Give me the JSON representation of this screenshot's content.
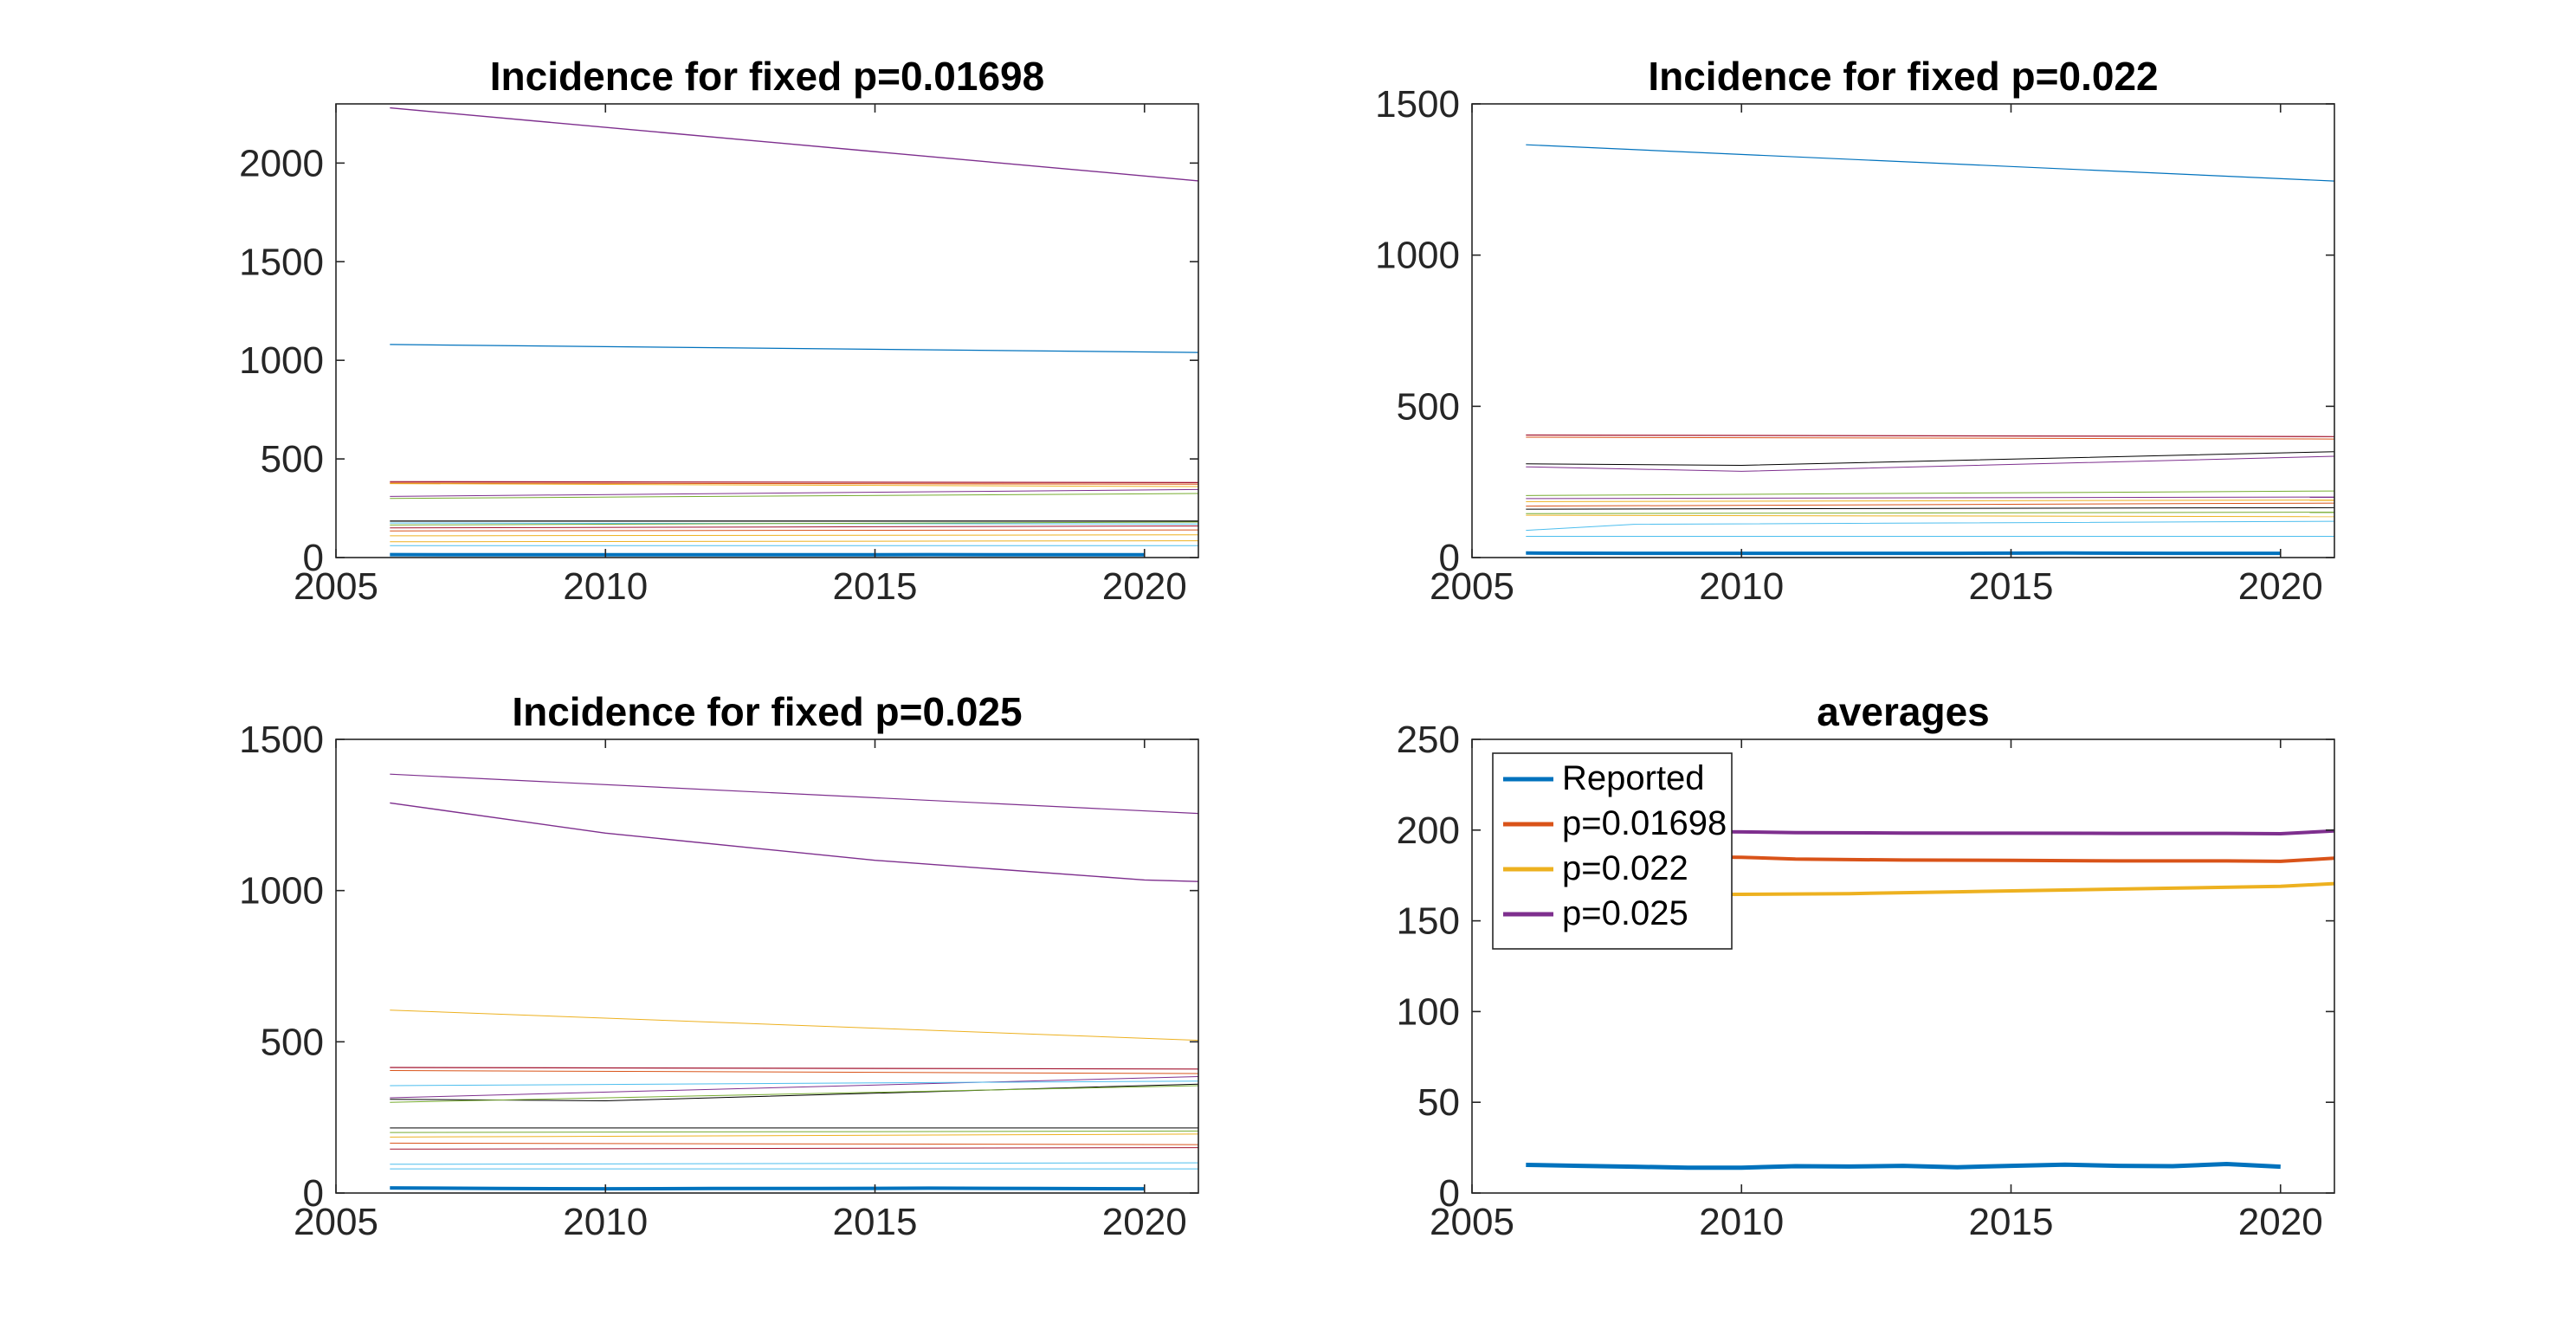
{
  "chart_data": [
    {
      "type": "line",
      "title": "Incidence for fixed p=0.01698",
      "xlim": [
        2005,
        2021
      ],
      "ylim": [
        0,
        2300
      ],
      "xticks": [
        2005,
        2010,
        2015,
        2020
      ],
      "yticks": [
        0,
        500,
        1000,
        1500,
        2000
      ],
      "series": [
        {
          "color": "#7E2F8E",
          "width": 1.4,
          "x": [
            2006,
            2021
          ],
          "y": [
            2280,
            1910
          ]
        },
        {
          "color": "#0072BD",
          "width": 1.2,
          "x": [
            2006,
            2021
          ],
          "y": [
            1080,
            1040
          ]
        },
        {
          "color": "#A2142F",
          "width": 1.2,
          "x": [
            2006,
            2021
          ],
          "y": [
            385,
            380
          ]
        },
        {
          "color": "#D95319",
          "width": 1.2,
          "x": [
            2006,
            2021
          ],
          "y": [
            378,
            372
          ]
        },
        {
          "color": "#EDB120",
          "width": 1.0,
          "x": [
            2006,
            2021
          ],
          "y": [
            375,
            360
          ]
        },
        {
          "color": "#7E2F8E",
          "width": 1.0,
          "x": [
            2006,
            2021
          ],
          "y": [
            310,
            345
          ]
        },
        {
          "color": "#77AC30",
          "width": 1.0,
          "x": [
            2006,
            2021
          ],
          "y": [
            300,
            325
          ]
        },
        {
          "color": "#000000",
          "width": 1.2,
          "x": [
            2006,
            2021
          ],
          "y": [
            185,
            185
          ]
        },
        {
          "color": "#4DBEEE",
          "width": 1.0,
          "x": [
            2006,
            2021
          ],
          "y": [
            175,
            170
          ]
        },
        {
          "color": "#77AC30",
          "width": 1.0,
          "x": [
            2006,
            2021
          ],
          "y": [
            165,
            180
          ]
        },
        {
          "color": "#A2142F",
          "width": 1.0,
          "x": [
            2006,
            2021
          ],
          "y": [
            150,
            160
          ]
        },
        {
          "color": "#D95319",
          "width": 1.0,
          "x": [
            2006,
            2021
          ],
          "y": [
            135,
            140
          ]
        },
        {
          "color": "#EDB120",
          "width": 1.0,
          "x": [
            2006,
            2021
          ],
          "y": [
            110,
            115
          ]
        },
        {
          "color": "#EDB120",
          "width": 1.0,
          "x": [
            2006,
            2021
          ],
          "y": [
            80,
            85
          ]
        },
        {
          "color": "#4DBEEE",
          "width": 1.0,
          "x": [
            2006,
            2021
          ],
          "y": [
            60,
            60
          ]
        },
        {
          "color": "#0072BD",
          "width": 4.0,
          "x": [
            2006,
            2008,
            2010,
            2012,
            2014,
            2016,
            2018,
            2020
          ],
          "y": [
            15,
            14,
            14,
            14,
            14,
            15,
            14,
            14
          ]
        }
      ]
    },
    {
      "type": "line",
      "title": "Incidence for fixed p=0.022",
      "xlim": [
        2005,
        2021
      ],
      "ylim": [
        0,
        1500
      ],
      "xticks": [
        2005,
        2010,
        2015,
        2020
      ],
      "yticks": [
        0,
        500,
        1000,
        1500
      ],
      "series": [
        {
          "color": "#0072BD",
          "width": 1.2,
          "x": [
            2006,
            2021
          ],
          "y": [
            1365,
            1245
          ]
        },
        {
          "color": "#A2142F",
          "width": 1.2,
          "x": [
            2006,
            2021
          ],
          "y": [
            405,
            400
          ]
        },
        {
          "color": "#D95319",
          "width": 1.0,
          "x": [
            2006,
            2021
          ],
          "y": [
            398,
            392
          ]
        },
        {
          "color": "#000000",
          "width": 1.0,
          "x": [
            2006,
            2010,
            2021
          ],
          "y": [
            310,
            305,
            350
          ]
        },
        {
          "color": "#7E2F8E",
          "width": 1.0,
          "x": [
            2006,
            2010,
            2021
          ],
          "y": [
            300,
            285,
            335
          ]
        },
        {
          "color": "#77AC30",
          "width": 1.0,
          "x": [
            2006,
            2021
          ],
          "y": [
            205,
            220
          ]
        },
        {
          "color": "#7E2F8E",
          "width": 1.0,
          "x": [
            2006,
            2021
          ],
          "y": [
            195,
            200
          ]
        },
        {
          "color": "#EDB120",
          "width": 1.0,
          "x": [
            2006,
            2021
          ],
          "y": [
            185,
            190
          ]
        },
        {
          "color": "#D95319",
          "width": 1.0,
          "x": [
            2006,
            2021
          ],
          "y": [
            170,
            180
          ]
        },
        {
          "color": "#000000",
          "width": 1.0,
          "x": [
            2006,
            2021
          ],
          "y": [
            160,
            165
          ]
        },
        {
          "color": "#77AC30",
          "width": 1.0,
          "x": [
            2006,
            2021
          ],
          "y": [
            145,
            150
          ]
        },
        {
          "color": "#EDB120",
          "width": 1.0,
          "x": [
            2006,
            2021
          ],
          "y": [
            140,
            135
          ]
        },
        {
          "color": "#4DBEEE",
          "width": 1.0,
          "x": [
            2006,
            2008,
            2021
          ],
          "y": [
            90,
            110,
            120
          ]
        },
        {
          "color": "#4DBEEE",
          "width": 1.0,
          "x": [
            2006,
            2021
          ],
          "y": [
            70,
            70
          ]
        },
        {
          "color": "#0072BD",
          "width": 4.0,
          "x": [
            2006,
            2008,
            2010,
            2012,
            2014,
            2016,
            2018,
            2020
          ],
          "y": [
            15,
            14,
            14,
            14,
            14,
            15,
            14,
            14
          ]
        }
      ]
    },
    {
      "type": "line",
      "title": "Incidence for fixed p=0.025",
      "xlim": [
        2005,
        2021
      ],
      "ylim": [
        0,
        1500
      ],
      "xticks": [
        2005,
        2010,
        2015,
        2020
      ],
      "yticks": [
        0,
        500,
        1000,
        1500
      ],
      "series": [
        {
          "color": "#7E2F8E",
          "width": 1.2,
          "x": [
            2006,
            2021
          ],
          "y": [
            1385,
            1255
          ]
        },
        {
          "color": "#7E2F8E",
          "width": 1.4,
          "x": [
            2006,
            2010,
            2015,
            2020,
            2021
          ],
          "y": [
            1290,
            1190,
            1100,
            1035,
            1030
          ]
        },
        {
          "color": "#EDB120",
          "width": 1.0,
          "x": [
            2006,
            2021
          ],
          "y": [
            605,
            505
          ]
        },
        {
          "color": "#A2142F",
          "width": 1.2,
          "x": [
            2006,
            2021
          ],
          "y": [
            415,
            410
          ]
        },
        {
          "color": "#D95319",
          "width": 1.0,
          "x": [
            2006,
            2021
          ],
          "y": [
            405,
            395
          ]
        },
        {
          "color": "#7E2F8E",
          "width": 1.0,
          "x": [
            2006,
            2021
          ],
          "y": [
            315,
            385
          ]
        },
        {
          "color": "#4DBEEE",
          "width": 1.0,
          "x": [
            2006,
            2021
          ],
          "y": [
            355,
            370
          ]
        },
        {
          "color": "#000000",
          "width": 1.0,
          "x": [
            2006,
            2010,
            2021
          ],
          "y": [
            310,
            305,
            360
          ]
        },
        {
          "color": "#77AC30",
          "width": 1.0,
          "x": [
            2006,
            2021
          ],
          "y": [
            300,
            355
          ]
        },
        {
          "color": "#000000",
          "width": 1.0,
          "x": [
            2006,
            2021
          ],
          "y": [
            215,
            215
          ]
        },
        {
          "color": "#77AC30",
          "width": 1.0,
          "x": [
            2006,
            2021
          ],
          "y": [
            200,
            205
          ]
        },
        {
          "color": "#EDB120",
          "width": 1.0,
          "x": [
            2006,
            2021
          ],
          "y": [
            185,
            195
          ]
        },
        {
          "color": "#D95319",
          "width": 1.0,
          "x": [
            2006,
            2021
          ],
          "y": [
            165,
            160
          ]
        },
        {
          "color": "#A2142F",
          "width": 1.0,
          "x": [
            2006,
            2021
          ],
          "y": [
            145,
            150
          ]
        },
        {
          "color": "#4DBEEE",
          "width": 1.0,
          "x": [
            2006,
            2021
          ],
          "y": [
            95,
            100
          ]
        },
        {
          "color": "#4DBEEE",
          "width": 1.0,
          "x": [
            2006,
            2021
          ],
          "y": [
            80,
            80
          ]
        },
        {
          "color": "#0072BD",
          "width": 4.0,
          "x": [
            2006,
            2008,
            2010,
            2012,
            2014,
            2016,
            2018,
            2020
          ],
          "y": [
            17,
            15,
            14,
            15,
            15,
            16,
            15,
            14
          ]
        }
      ]
    },
    {
      "type": "line",
      "title": "averages",
      "xlim": [
        2005,
        2021
      ],
      "ylim": [
        0,
        250
      ],
      "xticks": [
        2005,
        2010,
        2015,
        2020
      ],
      "yticks": [
        0,
        50,
        100,
        150,
        200,
        250
      ],
      "legend": {
        "position": "top-left",
        "entries": [
          {
            "label": "Reported",
            "color": "#0072BD"
          },
          {
            "label": "p=0.01698",
            "color": "#D95319"
          },
          {
            "label": "p=0.022",
            "color": "#EDB120"
          },
          {
            "label": "p=0.025",
            "color": "#7E2F8E"
          }
        ]
      },
      "series": [
        {
          "name": "Reported",
          "color": "#0072BD",
          "width": 5.0,
          "x": [
            2006,
            2007,
            2008,
            2009,
            2010,
            2011,
            2012,
            2013,
            2014,
            2015,
            2016,
            2017,
            2018,
            2019,
            2020
          ],
          "y": [
            15.5,
            15,
            14.5,
            14,
            14,
            14.8,
            14.6,
            15,
            14.2,
            15,
            15.6,
            15,
            14.8,
            16,
            14.5
          ]
        },
        {
          "name": "p=0.01698",
          "color": "#D95319",
          "width": 4.0,
          "x": [
            2006,
            2008,
            2010,
            2011,
            2013,
            2015,
            2017,
            2019,
            2020,
            2021
          ],
          "y": [
            186,
            185.5,
            185,
            184,
            183.5,
            183.3,
            183,
            183,
            182.8,
            184.5
          ]
        },
        {
          "name": "p=0.022",
          "color": "#EDB120",
          "width": 4.0,
          "x": [
            2006,
            2008,
            2010,
            2012,
            2014,
            2016,
            2018,
            2020,
            2021
          ],
          "y": [
            164,
            164.3,
            164.6,
            165,
            166,
            167,
            168,
            169,
            170.5
          ]
        },
        {
          "name": "p=0.025",
          "color": "#7E2F8E",
          "width": 4.0,
          "x": [
            2006,
            2008,
            2010,
            2011,
            2013,
            2015,
            2017,
            2019,
            2020,
            2021
          ],
          "y": [
            199.5,
            199.3,
            199,
            198.6,
            198.4,
            198.3,
            198.2,
            198.2,
            198,
            199.5
          ]
        }
      ]
    }
  ]
}
